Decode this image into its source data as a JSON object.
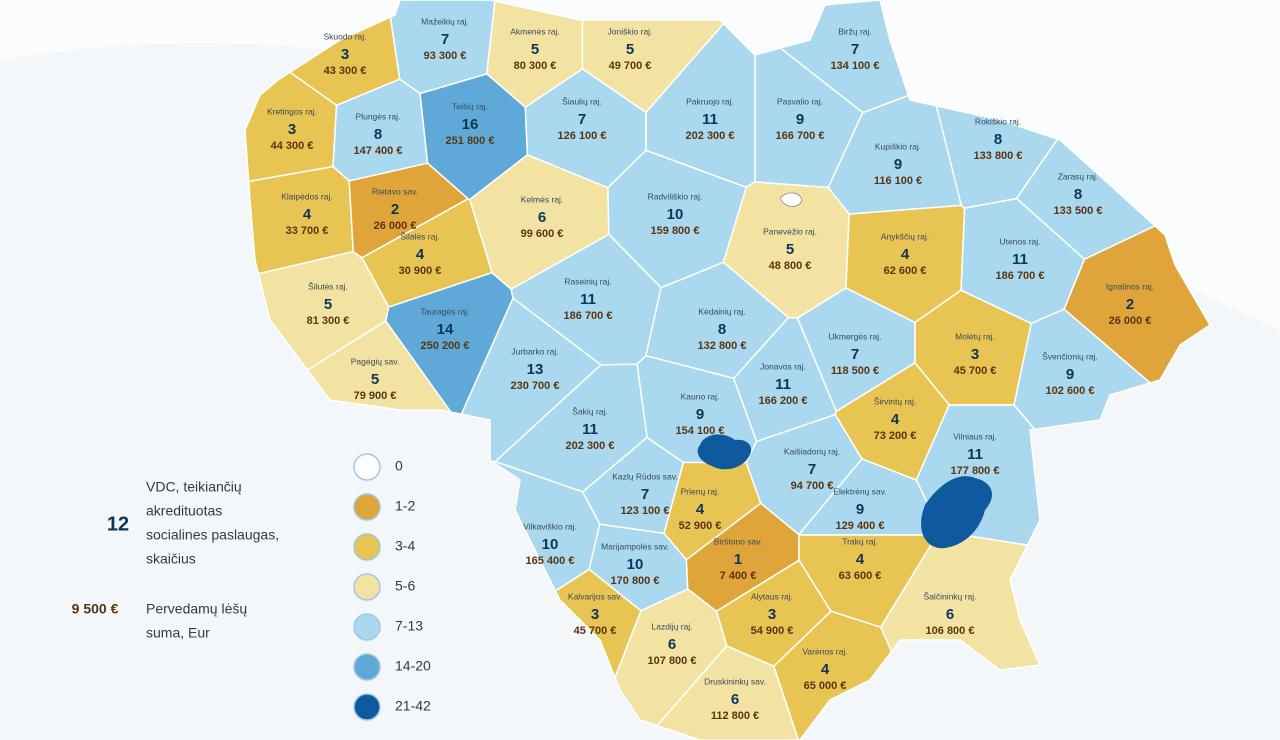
{
  "regions": [
    {
      "name": "Skuodo raj.",
      "count": 3,
      "amount": "43 300 €",
      "color": "#e8c453"
    },
    {
      "name": "Mažeikių raj.",
      "count": 7,
      "amount": "93 300 €",
      "color": "#a9d8ef"
    },
    {
      "name": "Akmenės raj.",
      "count": 5,
      "amount": "80 300 €",
      "color": "#f2e3a2"
    },
    {
      "name": "Joniškio raj.",
      "count": 5,
      "amount": "49 700 €",
      "color": "#f2e3a2"
    },
    {
      "name": "Biržų raj.",
      "count": 7,
      "amount": "134 100 €",
      "color": "#a9d8ef"
    },
    {
      "name": "Kretingos raj.",
      "count": 3,
      "amount": "44 300 €",
      "color": "#e8c453"
    },
    {
      "name": "Plungės raj.",
      "count": 8,
      "amount": "147 400 €",
      "color": "#a9d8ef"
    },
    {
      "name": "Telšių raj.",
      "count": 16,
      "amount": "251 800 €",
      "color": "#5fa9d9"
    },
    {
      "name": "Šiaulių raj.",
      "count": 7,
      "amount": "126 100 €",
      "color": "#a9d8ef"
    },
    {
      "name": "Pakruojo raj.",
      "count": 11,
      "amount": "202 300 €",
      "color": "#a9d8ef"
    },
    {
      "name": "Pasvalio raj.",
      "count": 9,
      "amount": "166 700 €",
      "color": "#a9d8ef"
    },
    {
      "name": "Rokiškio raj.",
      "count": 8,
      "amount": "133 800 €",
      "color": "#a9d8ef"
    },
    {
      "name": "Kupiškio raj.",
      "count": 9,
      "amount": "116 100 €",
      "color": "#a9d8ef"
    },
    {
      "name": "Zarasų raj.",
      "count": 8,
      "amount": "133 500 €",
      "color": "#a9d8ef"
    },
    {
      "name": "Klaipėdos raj.",
      "count": 4,
      "amount": "33 700 €",
      "color": "#e8c453"
    },
    {
      "name": "Rietavo sav.",
      "count": 2,
      "amount": "26 000 €",
      "color": "#e0a53a"
    },
    {
      "name": "Kelmės raj.",
      "count": 6,
      "amount": "99 600 €",
      "color": "#f2e3a2"
    },
    {
      "name": "Radviliškio raj.",
      "count": 10,
      "amount": "159 800 €",
      "color": "#a9d8ef"
    },
    {
      "name": "Panevėžio raj.",
      "count": 5,
      "amount": "48 800 €",
      "color": "#f2e3a2"
    },
    {
      "name": "Anykščių raj.",
      "count": 4,
      "amount": "62 600 €",
      "color": "#e8c453"
    },
    {
      "name": "Utenos raj.",
      "count": 11,
      "amount": "186 700 €",
      "color": "#a9d8ef"
    },
    {
      "name": "Ignalinos raj.",
      "count": 2,
      "amount": "26 000 €",
      "color": "#e0a53a"
    },
    {
      "name": "Šilalės raj.",
      "count": 4,
      "amount": "30 900 €",
      "color": "#e8c453"
    },
    {
      "name": "Šilutės raj.",
      "count": 5,
      "amount": "81 300 €",
      "color": "#f2e3a2"
    },
    {
      "name": "Raseinių raj.",
      "count": 11,
      "amount": "186 700 €",
      "color": "#a9d8ef"
    },
    {
      "name": "Tauragės raj.",
      "count": 14,
      "amount": "250 200 €",
      "color": "#5fa9d9"
    },
    {
      "name": "Kėdainių raj.",
      "count": 8,
      "amount": "132 800 €",
      "color": "#a9d8ef"
    },
    {
      "name": "Ukmergės raj.",
      "count": 7,
      "amount": "118 500 €",
      "color": "#a9d8ef"
    },
    {
      "name": "Molėtų raj.",
      "count": 3,
      "amount": "45 700 €",
      "color": "#e8c453"
    },
    {
      "name": "Švenčionių raj.",
      "count": 9,
      "amount": "102 600 €",
      "color": "#a9d8ef"
    },
    {
      "name": "Pagėgių sav.",
      "count": 5,
      "amount": "79 900 €",
      "color": "#f2e3a2"
    },
    {
      "name": "Jurbarko raj.",
      "count": 13,
      "amount": "230 700 €",
      "color": "#a9d8ef"
    },
    {
      "name": "Jonavos raj.",
      "count": 11,
      "amount": "166 200 €",
      "color": "#a9d8ef"
    },
    {
      "name": "Kauno raj.",
      "count": 9,
      "amount": "154 100 €",
      "color": "#a9d8ef"
    },
    {
      "name": "Širvintų raj.",
      "count": 4,
      "amount": "73 200 €",
      "color": "#e8c453"
    },
    {
      "name": "Šakių raj.",
      "count": 11,
      "amount": "202 300 €",
      "color": "#a9d8ef"
    },
    {
      "name": "Vilniaus raj.",
      "count": 11,
      "amount": "177 800 €",
      "color": "#a9d8ef"
    },
    {
      "name": "Kaišiadorių raj.",
      "count": 7,
      "amount": "94 700 €",
      "color": "#a9d8ef"
    },
    {
      "name": "Kazlų Rūdos sav.",
      "count": 7,
      "amount": "123 100 €",
      "color": "#a9d8ef"
    },
    {
      "name": "Prienų raj.",
      "count": 4,
      "amount": "52 900 €",
      "color": "#e8c453"
    },
    {
      "name": "Elektrėnų sav.",
      "count": 9,
      "amount": "129 400 €",
      "color": "#a9d8ef"
    },
    {
      "name": "Vilkaviškio raj.",
      "count": 10,
      "amount": "165 400 €",
      "color": "#a9d8ef"
    },
    {
      "name": "Marijampolės sav.",
      "count": 10,
      "amount": "170 800 €",
      "color": "#a9d8ef"
    },
    {
      "name": "Birštono sav.",
      "count": 1,
      "amount": "7 400 €",
      "color": "#e0a53a"
    },
    {
      "name": "Trakų raj.",
      "count": 4,
      "amount": "63 600 €",
      "color": "#e8c453"
    },
    {
      "name": "Kalvarijos sav.",
      "count": 3,
      "amount": "45 700 €",
      "color": "#e8c453"
    },
    {
      "name": "Alytaus raj.",
      "count": 3,
      "amount": "54 900 €",
      "color": "#e8c453"
    },
    {
      "name": "Šalčininkų raj.",
      "count": 6,
      "amount": "106 800 €",
      "color": "#f2e3a2"
    },
    {
      "name": "Lazdijų raj.",
      "count": 6,
      "amount": "107 800 €",
      "color": "#f2e3a2"
    },
    {
      "name": "Varėnos raj.",
      "count": 4,
      "amount": "65 000 €",
      "color": "#e8c453"
    },
    {
      "name": "Druskininkų sav.",
      "count": 6,
      "amount": "112 800 €",
      "color": "#f2e3a2"
    }
  ],
  "legend": {
    "items": [
      {
        "label": "0",
        "color": "#ffffff"
      },
      {
        "label": "1-2",
        "color": "#e0a53a"
      },
      {
        "label": "3-4",
        "color": "#e8c453"
      },
      {
        "label": "5-6",
        "color": "#f2e3a2"
      },
      {
        "label": "7-13",
        "color": "#a9d8ef"
      },
      {
        "label": "14-20",
        "color": "#5fa9d9"
      },
      {
        "label": "21-42",
        "color": "#0f5a9e"
      }
    ],
    "count_example": "12",
    "count_text": [
      "VDC, teikiančių",
      "akredituotas",
      "socialines paslaugas,",
      "skaičius"
    ],
    "amount_example": "9 500 €",
    "amount_text": [
      "Pervedamų lėšų",
      "suma, Eur"
    ]
  }
}
